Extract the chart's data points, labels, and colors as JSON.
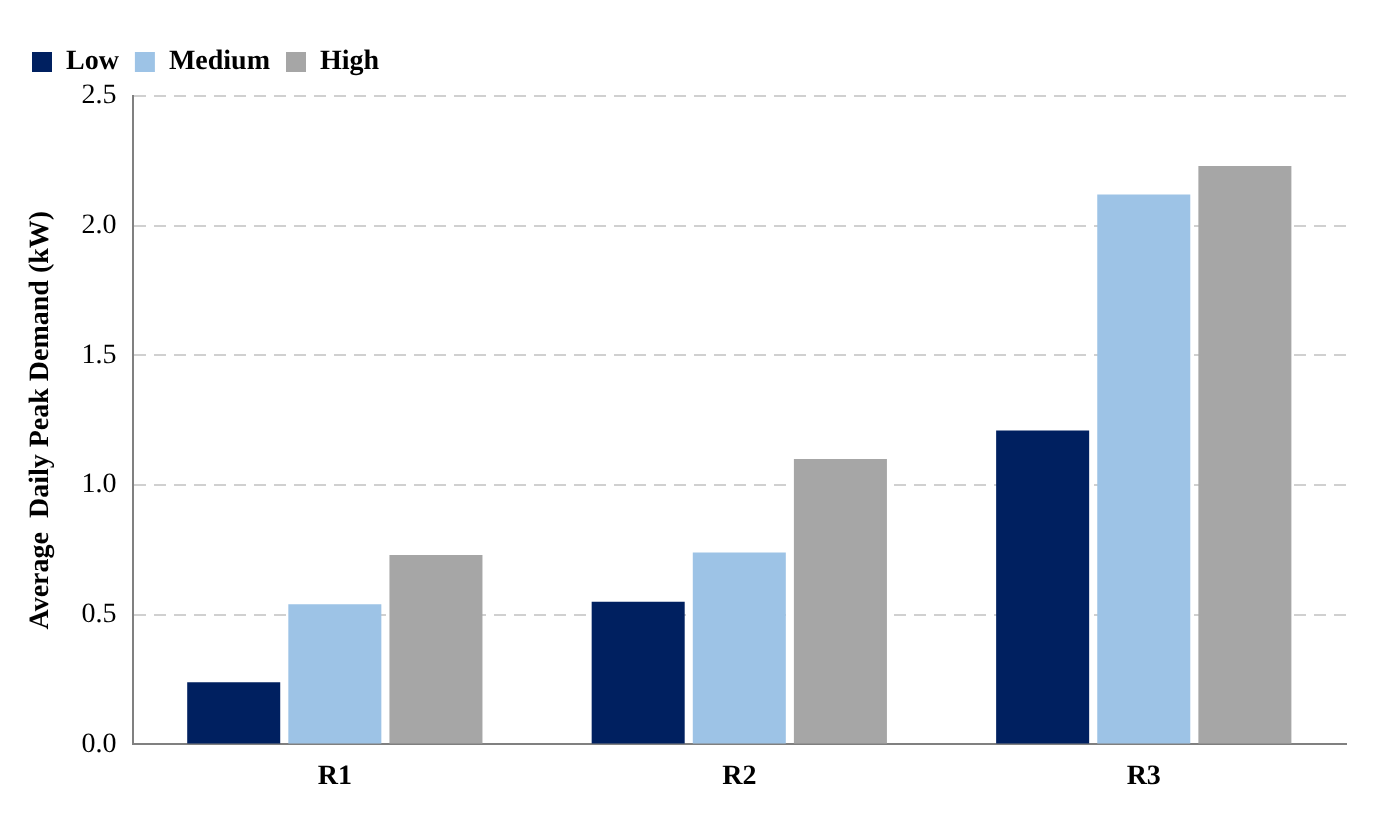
{
  "chart_data": {
    "type": "bar",
    "ylabel": "Average  Daily Peak Demand (kW)",
    "categories": [
      "R1",
      "R2",
      "R3"
    ],
    "series": [
      {
        "name": "Low",
        "color": "#002060",
        "values": [
          0.24,
          0.55,
          1.21
        ]
      },
      {
        "name": "Medium",
        "color": "#9dc3e6",
        "values": [
          0.54,
          0.74,
          2.12
        ]
      },
      {
        "name": "High",
        "color": "#a6a6a6",
        "values": [
          0.73,
          1.1,
          2.23
        ]
      }
    ],
    "ylim": [
      0,
      2.5
    ],
    "yticks": [
      {
        "value": 0,
        "label": "0.0"
      },
      0.5,
      {
        "value": 1,
        "label": "1.0"
      },
      1.5,
      {
        "value": 2,
        "label": "2.0"
      },
      2.5
    ],
    "grid": "y",
    "legend": "top left"
  }
}
